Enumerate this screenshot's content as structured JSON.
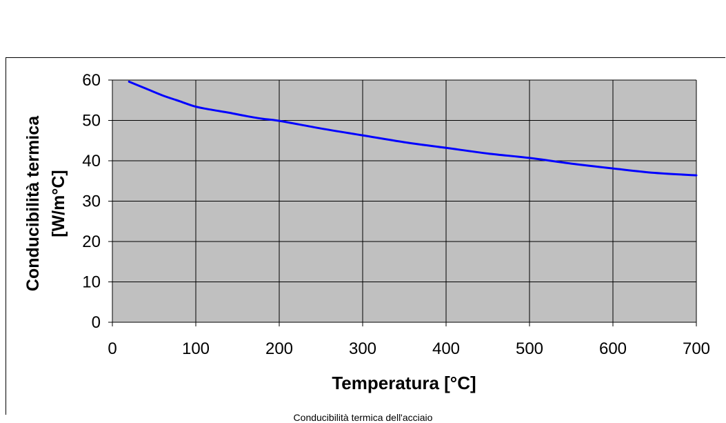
{
  "chart_data": {
    "type": "line",
    "title": "",
    "xlabel": "Temperatura [°C]",
    "ylabel_line1": "Conducibilità termica",
    "ylabel_line2": "[W/m°C]",
    "xlim": [
      0,
      700
    ],
    "ylim": [
      0,
      60
    ],
    "xticks": [
      "0",
      "100",
      "200",
      "300",
      "400",
      "500",
      "600",
      "700"
    ],
    "yticks": [
      "0",
      "10",
      "20",
      "30",
      "40",
      "50",
      "60"
    ],
    "grid": true,
    "legend": "none",
    "colors": {
      "plot_bg": "#c0c0c0",
      "line": "#0000ff",
      "grid": "#000000"
    },
    "series": [
      {
        "x": [
          20,
          40,
          60,
          80,
          100,
          120,
          140,
          160,
          180,
          200,
          250,
          300,
          350,
          400,
          450,
          500,
          550,
          600,
          650,
          700
        ],
        "values": [
          59.6,
          57.9,
          56.2,
          54.8,
          53.4,
          52.6,
          51.9,
          51.1,
          50.4,
          49.9,
          48.0,
          46.3,
          44.6,
          43.2,
          41.8,
          40.7,
          39.3,
          38.1,
          37.0,
          36.4
        ]
      }
    ]
  },
  "caption": "Conducibilità termica dell'acciaio"
}
